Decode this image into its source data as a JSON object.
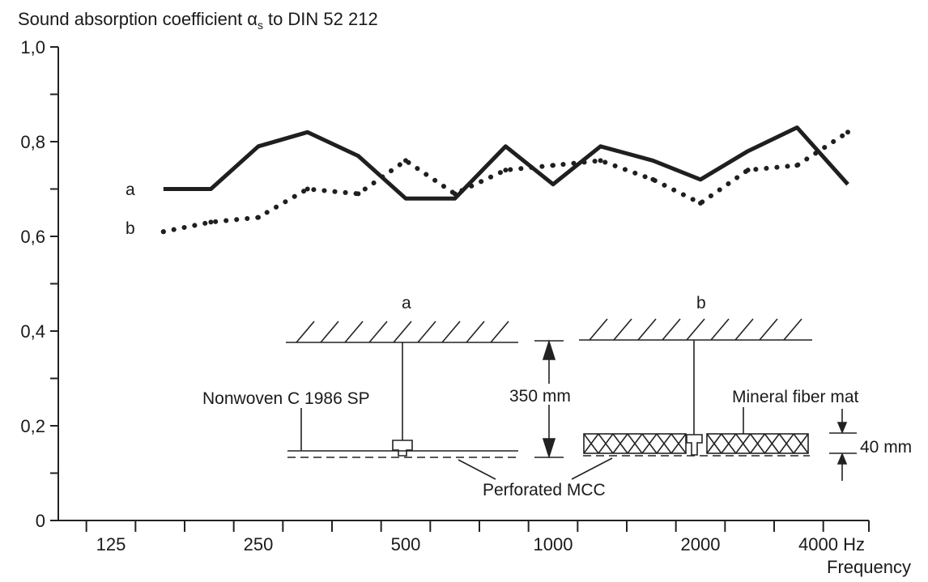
{
  "chart_data": {
    "type": "line",
    "title": "Sound absorption coefficient",
    "title_symbol": "α",
    "title_subscript": "s",
    "title_suffix": "to DIN 52 212",
    "xlabel": "Frequency",
    "x_scale": "log",
    "x_ticks": [
      125,
      250,
      500,
      1000,
      2000,
      4000
    ],
    "x_tick_labels": [
      "125",
      "250",
      "500",
      "1000",
      "2000",
      "4000 Hz"
    ],
    "x": [
      160,
      200,
      250,
      315,
      400,
      500,
      630,
      800,
      1000,
      1250,
      1600,
      2000,
      2500,
      3150,
      4000
    ],
    "ylim": [
      0,
      1.0
    ],
    "y_ticks": [
      0,
      0.2,
      0.4,
      0.6,
      0.8,
      1.0
    ],
    "y_tick_labels": [
      "0",
      "0,2",
      "0,4",
      "0,6",
      "0,8",
      "1,0"
    ],
    "grid": false,
    "series": [
      {
        "name": "a",
        "style": "solid",
        "values": [
          0.7,
          0.7,
          0.79,
          0.82,
          0.77,
          0.68,
          0.68,
          0.79,
          0.71,
          0.79,
          0.76,
          0.72,
          0.78,
          0.83,
          0.71
        ]
      },
      {
        "name": "b",
        "style": "dotted",
        "values": [
          0.61,
          0.63,
          0.64,
          0.7,
          0.69,
          0.76,
          0.69,
          0.74,
          0.75,
          0.76,
          0.72,
          0.67,
          0.74,
          0.75,
          0.82
        ]
      }
    ],
    "inset": {
      "label_a": "a",
      "label_b": "b",
      "label_nonwoven": "Nonwoven C 1986 SP",
      "label_cavity": "350 mm",
      "label_mineral": "Mineral fiber mat",
      "label_thickness": "40 mm",
      "label_perforated": "Perforated MCC"
    }
  }
}
